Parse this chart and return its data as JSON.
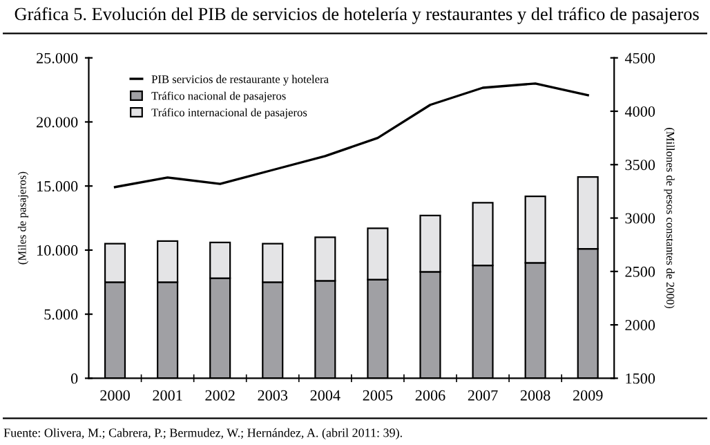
{
  "chart_data": {
    "type": "bar",
    "stacked": true,
    "title": "Gráfica 5. Evolución del PIB de servicios de hotelería y restaurantes y del tráfico de pasajeros",
    "ylabel": "(Miles de pasajeros)",
    "y2label": "(Millones de pesos constantes de 2000)",
    "categories": [
      "2000",
      "2001",
      "2002",
      "2003",
      "2004",
      "2005",
      "2006",
      "2007",
      "2008",
      "2009"
    ],
    "series": [
      {
        "name": "PIB servicios de restaurante y hotelera",
        "type": "line",
        "axis": "y2",
        "color": "#000000",
        "values": [
          3290,
          3380,
          3320,
          3450,
          3580,
          3750,
          4060,
          4220,
          4260,
          4150
        ]
      },
      {
        "name": "Tráfico nacional de pasajeros",
        "color": "#a0a0a4",
        "values": [
          7500,
          7500,
          7800,
          7500,
          7600,
          7700,
          8300,
          8800,
          9000,
          10100
        ]
      },
      {
        "name": "Tráfico internacional de pasajeros",
        "color": "#e4e4e6",
        "values": [
          3000,
          3200,
          2800,
          3000,
          3400,
          4000,
          4400,
          4900,
          5200,
          5600
        ]
      }
    ],
    "ylim": [
      0,
      25000
    ],
    "yticks": [
      {
        "value": 0,
        "label": "0"
      },
      {
        "value": 5000,
        "label": "5.000"
      },
      {
        "value": 10000,
        "label": "10.000"
      },
      {
        "value": 15000,
        "label": "15.000"
      },
      {
        "value": 20000,
        "label": "20.000"
      },
      {
        "value": 25000,
        "label": "25.000"
      }
    ],
    "y2lim": [
      1500,
      4500
    ],
    "y2ticks": [
      1500,
      2000,
      2500,
      3000,
      3500,
      4000,
      4500
    ],
    "legend": "top left",
    "grid": false,
    "marker": "none",
    "line_style": "solid",
    "annotations": [
      "Fuente: Olivera, M.; Cabrera, P.; Bermudez, W.; Hernández, A. (abril 2011: 39)."
    ]
  }
}
